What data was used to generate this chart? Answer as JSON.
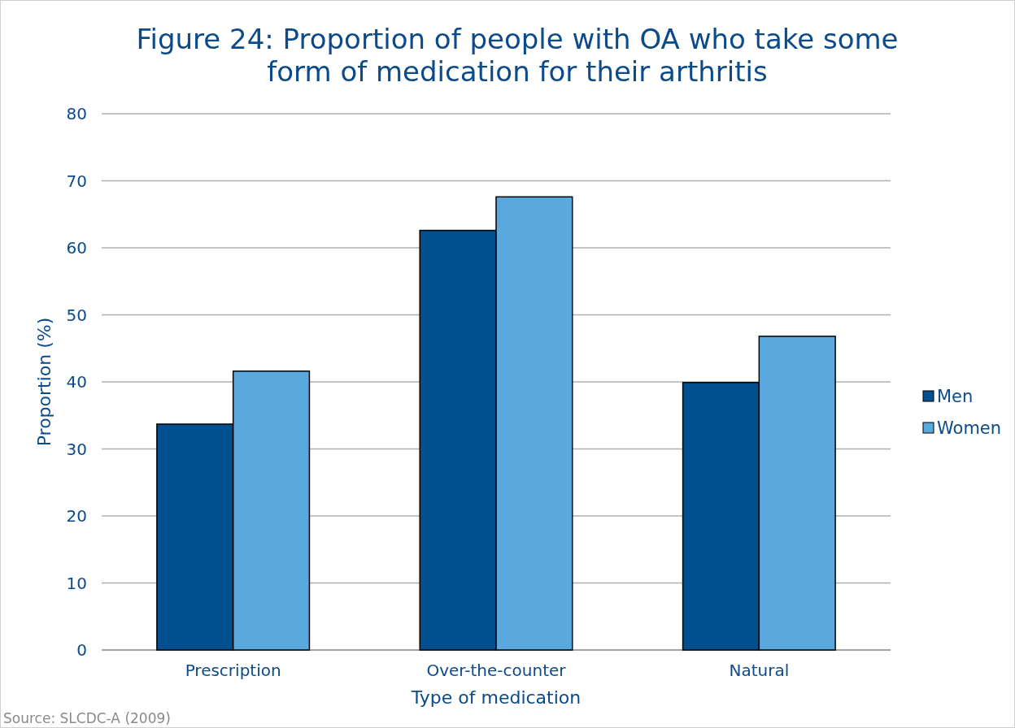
{
  "chart_data": {
    "type": "bar",
    "title": "Figure 24: Proportion of people with OA who take some form of medication for their arthritis",
    "xlabel": "Type of medication",
    "ylabel": "Proportion (%)",
    "categories": [
      "Prescription",
      "Over-the-counter",
      "Natural"
    ],
    "series": [
      {
        "name": "Men",
        "color": "#00508f",
        "values": [
          33.7,
          62.6,
          39.9
        ]
      },
      {
        "name": "Women",
        "color": "#59a9de",
        "values": [
          41.6,
          67.6,
          46.8
        ]
      }
    ],
    "ylim": [
      0,
      80
    ],
    "yticks": [
      0,
      10,
      20,
      30,
      40,
      50,
      60,
      70,
      80
    ],
    "grid": "y",
    "legend": "right",
    "annotations": [
      "Source: SLCDC-A (2009)"
    ]
  }
}
